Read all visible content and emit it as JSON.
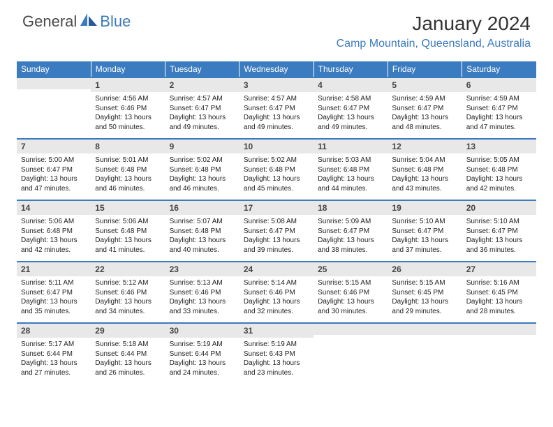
{
  "brand": {
    "part1": "General",
    "part2": "Blue"
  },
  "title": "January 2024",
  "location": "Camp Mountain, Queensland, Australia",
  "colors": {
    "header_bg": "#3b7bbf",
    "header_text": "#ffffff",
    "daynum_bg": "#e8e8e8",
    "border": "#3b7bbf",
    "body_text": "#222222"
  },
  "weekdays": [
    "Sunday",
    "Monday",
    "Tuesday",
    "Wednesday",
    "Thursday",
    "Friday",
    "Saturday"
  ],
  "weeks": [
    [
      null,
      {
        "n": 1,
        "sr": "4:56 AM",
        "ss": "6:46 PM",
        "dl": "13 hours and 50 minutes."
      },
      {
        "n": 2,
        "sr": "4:57 AM",
        "ss": "6:47 PM",
        "dl": "13 hours and 49 minutes."
      },
      {
        "n": 3,
        "sr": "4:57 AM",
        "ss": "6:47 PM",
        "dl": "13 hours and 49 minutes."
      },
      {
        "n": 4,
        "sr": "4:58 AM",
        "ss": "6:47 PM",
        "dl": "13 hours and 49 minutes."
      },
      {
        "n": 5,
        "sr": "4:59 AM",
        "ss": "6:47 PM",
        "dl": "13 hours and 48 minutes."
      },
      {
        "n": 6,
        "sr": "4:59 AM",
        "ss": "6:47 PM",
        "dl": "13 hours and 47 minutes."
      }
    ],
    [
      {
        "n": 7,
        "sr": "5:00 AM",
        "ss": "6:47 PM",
        "dl": "13 hours and 47 minutes."
      },
      {
        "n": 8,
        "sr": "5:01 AM",
        "ss": "6:48 PM",
        "dl": "13 hours and 46 minutes."
      },
      {
        "n": 9,
        "sr": "5:02 AM",
        "ss": "6:48 PM",
        "dl": "13 hours and 46 minutes."
      },
      {
        "n": 10,
        "sr": "5:02 AM",
        "ss": "6:48 PM",
        "dl": "13 hours and 45 minutes."
      },
      {
        "n": 11,
        "sr": "5:03 AM",
        "ss": "6:48 PM",
        "dl": "13 hours and 44 minutes."
      },
      {
        "n": 12,
        "sr": "5:04 AM",
        "ss": "6:48 PM",
        "dl": "13 hours and 43 minutes."
      },
      {
        "n": 13,
        "sr": "5:05 AM",
        "ss": "6:48 PM",
        "dl": "13 hours and 42 minutes."
      }
    ],
    [
      {
        "n": 14,
        "sr": "5:06 AM",
        "ss": "6:48 PM",
        "dl": "13 hours and 42 minutes."
      },
      {
        "n": 15,
        "sr": "5:06 AM",
        "ss": "6:48 PM",
        "dl": "13 hours and 41 minutes."
      },
      {
        "n": 16,
        "sr": "5:07 AM",
        "ss": "6:48 PM",
        "dl": "13 hours and 40 minutes."
      },
      {
        "n": 17,
        "sr": "5:08 AM",
        "ss": "6:47 PM",
        "dl": "13 hours and 39 minutes."
      },
      {
        "n": 18,
        "sr": "5:09 AM",
        "ss": "6:47 PM",
        "dl": "13 hours and 38 minutes."
      },
      {
        "n": 19,
        "sr": "5:10 AM",
        "ss": "6:47 PM",
        "dl": "13 hours and 37 minutes."
      },
      {
        "n": 20,
        "sr": "5:10 AM",
        "ss": "6:47 PM",
        "dl": "13 hours and 36 minutes."
      }
    ],
    [
      {
        "n": 21,
        "sr": "5:11 AM",
        "ss": "6:47 PM",
        "dl": "13 hours and 35 minutes."
      },
      {
        "n": 22,
        "sr": "5:12 AM",
        "ss": "6:46 PM",
        "dl": "13 hours and 34 minutes."
      },
      {
        "n": 23,
        "sr": "5:13 AM",
        "ss": "6:46 PM",
        "dl": "13 hours and 33 minutes."
      },
      {
        "n": 24,
        "sr": "5:14 AM",
        "ss": "6:46 PM",
        "dl": "13 hours and 32 minutes."
      },
      {
        "n": 25,
        "sr": "5:15 AM",
        "ss": "6:46 PM",
        "dl": "13 hours and 30 minutes."
      },
      {
        "n": 26,
        "sr": "5:15 AM",
        "ss": "6:45 PM",
        "dl": "13 hours and 29 minutes."
      },
      {
        "n": 27,
        "sr": "5:16 AM",
        "ss": "6:45 PM",
        "dl": "13 hours and 28 minutes."
      }
    ],
    [
      {
        "n": 28,
        "sr": "5:17 AM",
        "ss": "6:44 PM",
        "dl": "13 hours and 27 minutes."
      },
      {
        "n": 29,
        "sr": "5:18 AM",
        "ss": "6:44 PM",
        "dl": "13 hours and 26 minutes."
      },
      {
        "n": 30,
        "sr": "5:19 AM",
        "ss": "6:44 PM",
        "dl": "13 hours and 24 minutes."
      },
      {
        "n": 31,
        "sr": "5:19 AM",
        "ss": "6:43 PM",
        "dl": "13 hours and 23 minutes."
      },
      null,
      null,
      null
    ]
  ]
}
